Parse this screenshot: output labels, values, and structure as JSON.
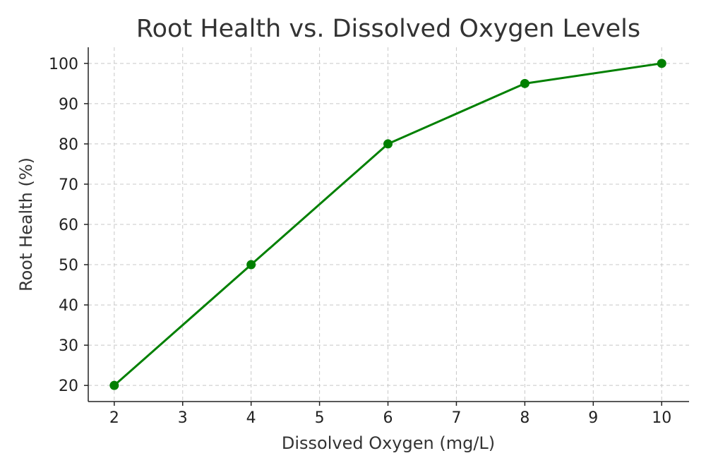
{
  "chart_data": {
    "type": "line",
    "title": "Root Health vs. Dissolved Oxygen Levels",
    "xlabel": "Dissolved Oxygen (mg/L)",
    "ylabel": "Root Health (%)",
    "x": [
      2,
      4,
      6,
      8,
      10
    ],
    "series": [
      {
        "name": "Root Health",
        "values": [
          20,
          50,
          80,
          95,
          100
        ],
        "color": "#008000"
      }
    ],
    "xlim": [
      1.62,
      10.4
    ],
    "ylim": [
      16,
      104
    ],
    "xticks": [
      2,
      3,
      4,
      5,
      6,
      7,
      8,
      9,
      10
    ],
    "yticks": [
      20,
      30,
      40,
      50,
      60,
      70,
      80,
      90,
      100
    ],
    "grid": true,
    "legend": "none"
  }
}
